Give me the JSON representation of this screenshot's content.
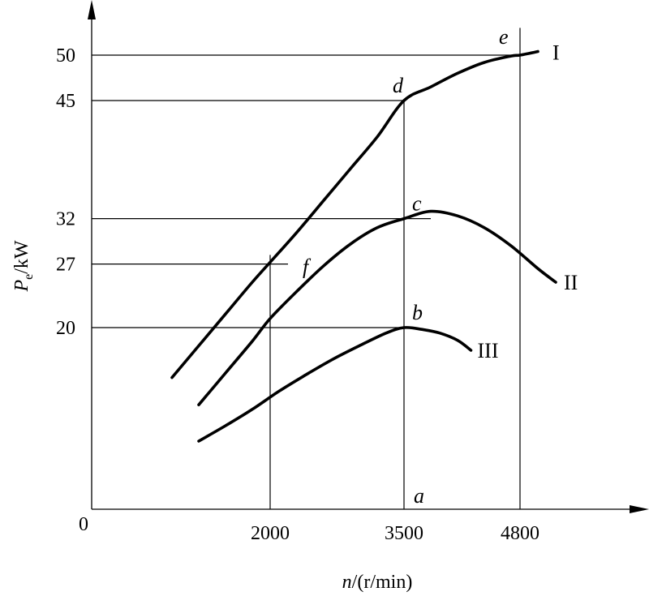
{
  "chart_data": {
    "type": "line",
    "xlabel_var": "n",
    "xlabel_unit": "/(r/min)",
    "ylabel_var": "P",
    "ylabel_sub": "e",
    "ylabel_unit": "/kW",
    "origin_label": "0",
    "xlim": [
      0,
      5000
    ],
    "ylim": [
      0,
      52
    ],
    "x_ticks": [
      2000,
      3500,
      4800
    ],
    "y_ticks": [
      20,
      27,
      32,
      45,
      50
    ],
    "grid": false,
    "series": [
      {
        "name": "I",
        "points": [
          [
            900,
            14.5
          ],
          [
            1200,
            18
          ],
          [
            1500,
            21.5
          ],
          [
            1800,
            25
          ],
          [
            2000,
            27.2
          ],
          [
            2300,
            30.5
          ],
          [
            2600,
            34
          ],
          [
            2900,
            37.5
          ],
          [
            3200,
            41
          ],
          [
            3500,
            45
          ],
          [
            3800,
            46.5
          ],
          [
            4100,
            48
          ],
          [
            4400,
            49.2
          ],
          [
            4700,
            49.9
          ],
          [
            4800,
            50
          ],
          [
            5000,
            50.4
          ]
        ]
      },
      {
        "name": "II",
        "points": [
          [
            1200,
            11.5
          ],
          [
            1500,
            15
          ],
          [
            1800,
            18.5
          ],
          [
            2000,
            21
          ],
          [
            2300,
            24
          ],
          [
            2600,
            26.8
          ],
          [
            2900,
            29.2
          ],
          [
            3200,
            31
          ],
          [
            3500,
            32
          ],
          [
            3800,
            32.8
          ],
          [
            4100,
            32.3
          ],
          [
            4400,
            31
          ],
          [
            4700,
            29
          ],
          [
            5000,
            26.5
          ],
          [
            5200,
            25
          ]
        ]
      },
      {
        "name": "III",
        "points": [
          [
            1200,
            7.5
          ],
          [
            1500,
            9.2
          ],
          [
            1800,
            11
          ],
          [
            2100,
            13
          ],
          [
            2400,
            14.8
          ],
          [
            2700,
            16.5
          ],
          [
            3000,
            18
          ],
          [
            3300,
            19.4
          ],
          [
            3500,
            20
          ],
          [
            3700,
            19.8
          ],
          [
            3900,
            19.4
          ],
          [
            4100,
            18.6
          ],
          [
            4250,
            17.5
          ]
        ]
      }
    ],
    "labeled_points": [
      {
        "label": "a",
        "x": 3500,
        "y": 0
      },
      {
        "label": "b",
        "x": 3500,
        "y": 20
      },
      {
        "label": "c",
        "x": 3500,
        "y": 32
      },
      {
        "label": "d",
        "x": 3500,
        "y": 45
      },
      {
        "label": "e",
        "x": 4800,
        "y": 50
      },
      {
        "label": "f",
        "x": 2000,
        "y": 27
      }
    ],
    "reference_lines": {
      "horizontal": [
        {
          "y": 50,
          "x_to": 4800
        },
        {
          "y": 45,
          "x_to": 3500
        },
        {
          "y": 32,
          "x_to": 3800
        },
        {
          "y": 27,
          "x_to": 2200
        },
        {
          "y": 20,
          "x_to": 3500
        }
      ],
      "vertical": [
        {
          "x": 2000,
          "y_to": 28
        },
        {
          "x": 3500,
          "y_to": 45
        },
        {
          "x": 4800,
          "y_to": 53
        }
      ]
    }
  }
}
